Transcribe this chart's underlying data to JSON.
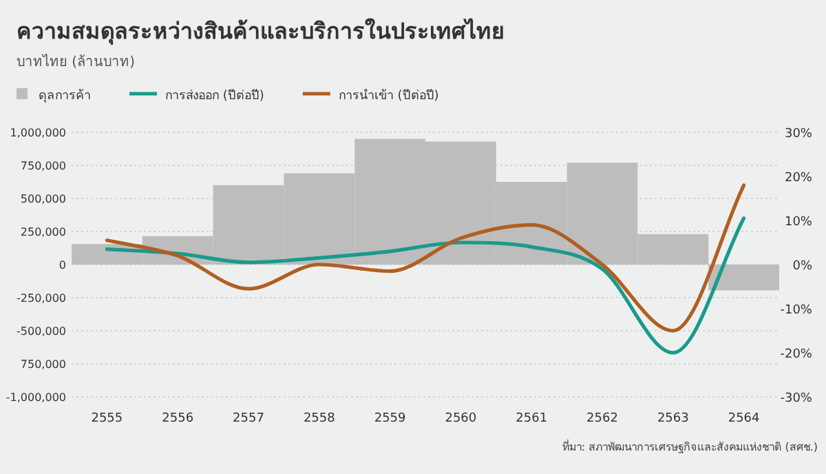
{
  "chart_data": {
    "type": "bar",
    "title": "ความสมดุลระหว่างสินค้าและบริการในประเทศไทย",
    "subtitle": "บาทไทย (ล้านบาท)",
    "categories": [
      "2555",
      "2556",
      "2557",
      "2558",
      "2559",
      "2560",
      "2561",
      "2562",
      "2563",
      "2564"
    ],
    "series": [
      {
        "name": "ดุลการค้า",
        "color": "#bdbdbd",
        "values": [
          155000,
          215000,
          600000,
          690000,
          950000,
          930000,
          625000,
          770000,
          230000,
          -195000
        ]
      },
      {
        "name": "การส่งออก (ปีต่อปี)",
        "type": "line",
        "axis": "y2",
        "color": "#1a9a8c",
        "values": [
          3.5,
          2.5,
          0.5,
          1.5,
          3,
          5,
          4,
          -1,
          -20,
          10.5
        ]
      },
      {
        "name": "การนำเข้า (ปีต่อปี)",
        "type": "line",
        "axis": "y2",
        "color": "#b05f22",
        "values": [
          5.5,
          2,
          -5.5,
          0,
          -1.5,
          6,
          9,
          0,
          -15,
          18
        ]
      }
    ],
    "ylim": [
      -1000000,
      1000000
    ],
    "yticks": [
      {
        "value": 1000000,
        "label": "1,000,000"
      },
      {
        "value": 750000,
        "label": "750,000"
      },
      {
        "value": 500000,
        "label": "500,000"
      },
      {
        "value": 250000,
        "label": "250,000"
      },
      0,
      {
        "value": -250000,
        "label": "-250,000"
      },
      {
        "value": -500000,
        "label": "-500,000"
      },
      {
        "value": -750000,
        "label": "750,000"
      },
      {
        "value": -1000000,
        "label": "-1,000,000"
      }
    ],
    "y2lim": [
      -30,
      30
    ],
    "y2ticks": [
      {
        "value": 30,
        "label": "30%"
      },
      {
        "value": 20,
        "label": "20%"
      },
      {
        "value": 10,
        "label": "10%"
      },
      {
        "value": 0,
        "label": "0%"
      },
      {
        "value": -10,
        "label": "-10%"
      },
      {
        "value": -20,
        "label": "-20%"
      },
      {
        "value": -30,
        "label": "-30%"
      }
    ],
    "grid": "y",
    "legend": "top left",
    "annotations": [
      "ที่มา: สภาพัฒนาการเศรษฐกิจและสังคมแห่งชาติ (สศช.)"
    ]
  }
}
